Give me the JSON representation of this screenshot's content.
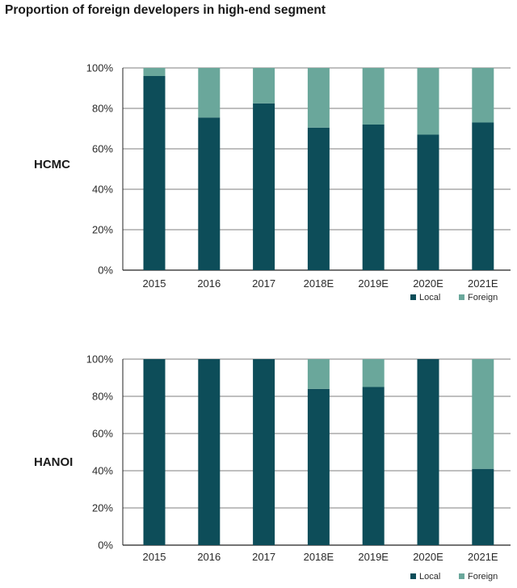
{
  "title": "Proportion of foreign developers in high-end segment",
  "colors": {
    "local": "#0d4d59",
    "foreign": "#6aa79b",
    "grid": "#555555",
    "axis": "#222222"
  },
  "chart_data": [
    {
      "type": "bar",
      "stacked": true,
      "region_label": "HCMC",
      "categories": [
        "2015",
        "2016",
        "2017",
        "2018E",
        "2019E",
        "2020E",
        "2021E"
      ],
      "series": [
        {
          "name": "Local",
          "values": [
            96,
            75.5,
            82.5,
            70.5,
            72,
            67,
            73
          ]
        },
        {
          "name": "Foreign",
          "values": [
            4,
            24.5,
            17.5,
            29.5,
            28,
            33,
            27
          ]
        }
      ],
      "yticks": [
        "0%",
        "20%",
        "40%",
        "60%",
        "80%",
        "100%"
      ],
      "ylim": [
        0,
        100
      ],
      "grid": true,
      "legend": "bottom-right"
    },
    {
      "type": "bar",
      "stacked": true,
      "region_label": "HANOI",
      "categories": [
        "2015",
        "2016",
        "2017",
        "2018E",
        "2019E",
        "2020E",
        "2021E"
      ],
      "series": [
        {
          "name": "Local",
          "values": [
            100,
            100,
            100,
            84,
            85,
            100,
            41
          ]
        },
        {
          "name": "Foreign",
          "values": [
            0,
            0,
            0,
            16,
            15,
            0,
            59
          ]
        }
      ],
      "yticks": [
        "0%",
        "20%",
        "40%",
        "60%",
        "80%",
        "100%"
      ],
      "ylim": [
        0,
        100
      ],
      "grid": true,
      "legend": "bottom-right"
    }
  ]
}
